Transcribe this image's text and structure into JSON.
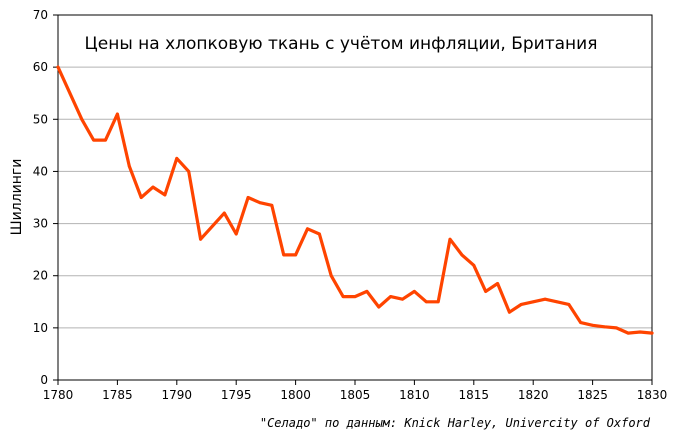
{
  "chart_data": {
    "type": "line",
    "title": "Цены на хлопковую ткань с учётом инфляции, Британия",
    "xlabel": "",
    "ylabel": "Шиллинги",
    "source": "\"Селадо\" по данным: Knick Harley, Univercity of Oxford",
    "xlim": [
      1780,
      1830
    ],
    "ylim": [
      0,
      70
    ],
    "x_ticks": [
      1780,
      1785,
      1790,
      1795,
      1800,
      1805,
      1810,
      1815,
      1820,
      1825,
      1830
    ],
    "y_ticks": [
      0,
      10,
      20,
      30,
      40,
      50,
      60,
      70
    ],
    "grid": "horizontal",
    "series": [
      {
        "color": "#ff4400",
        "x": [
          1780,
          1781,
          1782,
          1783,
          1784,
          1785,
          1786,
          1787,
          1788,
          1789,
          1790,
          1791,
          1792,
          1793,
          1794,
          1795,
          1796,
          1797,
          1798,
          1799,
          1800,
          1801,
          1802,
          1803,
          1804,
          1805,
          1806,
          1807,
          1808,
          1809,
          1810,
          1811,
          1812,
          1813,
          1814,
          1815,
          1816,
          1817,
          1818,
          1819,
          1820,
          1821,
          1822,
          1823,
          1824,
          1825,
          1826,
          1827,
          1828,
          1829,
          1830
        ],
        "values": [
          60,
          55,
          50,
          46,
          46,
          51,
          41,
          35,
          37,
          35.5,
          42.5,
          40,
          27,
          29.5,
          32,
          28,
          35,
          34,
          33.5,
          24,
          24,
          29,
          28,
          20,
          16,
          16,
          17,
          14,
          16,
          15.5,
          17,
          15,
          15,
          27,
          24,
          22,
          17,
          18.5,
          13,
          14.5,
          15,
          15.5,
          15,
          14.5,
          11,
          10.5,
          10.2,
          10,
          9,
          9.2,
          9
        ]
      }
    ]
  }
}
